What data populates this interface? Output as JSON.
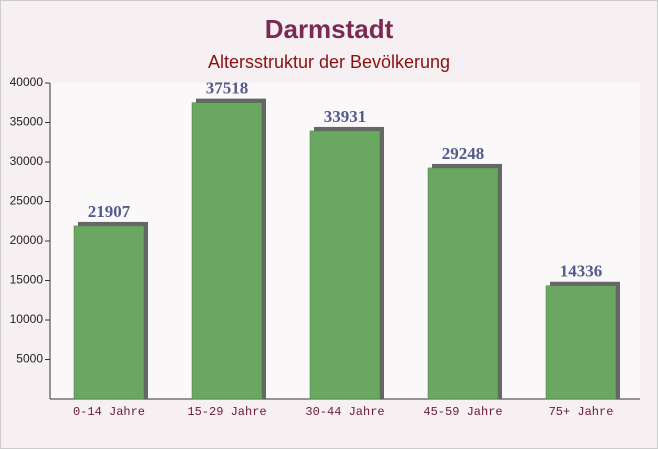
{
  "chart_data": {
    "type": "bar",
    "title": "Darmstadt",
    "subtitle": "Altersstruktur der Bevölkerung",
    "categories": [
      "0-14 Jahre",
      "15-29 Jahre",
      "30-44 Jahre",
      "45-59 Jahre",
      "75+ Jahre"
    ],
    "values": [
      21907,
      37518,
      33931,
      29248,
      14336
    ],
    "color": "#6aa862",
    "ylim": [
      0,
      40000
    ],
    "yticks": [
      5000,
      10000,
      15000,
      20000,
      25000,
      30000,
      35000,
      40000
    ],
    "grid": false
  }
}
